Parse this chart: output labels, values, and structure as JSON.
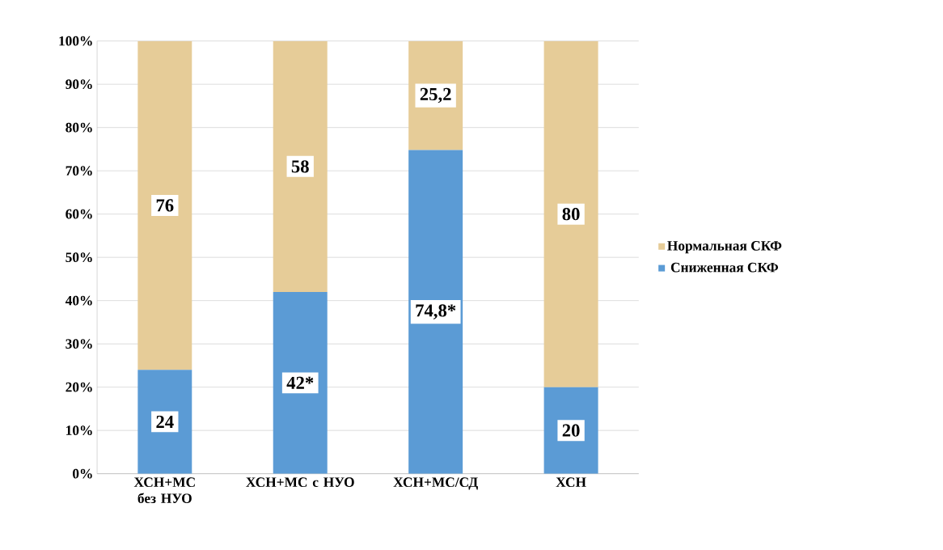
{
  "chart_data": {
    "type": "bar",
    "stacked": true,
    "categories": [
      "ХСН+МС без НУО",
      "ХСН+МС с НУО",
      "ХСН+МС/СД",
      "ХСН"
    ],
    "series": [
      {
        "name": "Сниженная СКФ",
        "color": "#5b9bd5",
        "values": [
          24,
          42,
          74.8,
          20
        ],
        "value_labels": [
          "24",
          "42*",
          "74,8*",
          "20"
        ]
      },
      {
        "name": "Нормальная СКФ",
        "color": "#e6cc98",
        "values": [
          76,
          58,
          25.2,
          80
        ],
        "value_labels": [
          "76",
          "58",
          "25,2",
          "80"
        ]
      }
    ],
    "ylim": [
      0,
      100
    ],
    "yticks": [
      {
        "value": 0,
        "label": "0%"
      },
      {
        "value": 10,
        "label": "10%"
      },
      {
        "value": 20,
        "label": "20%"
      },
      {
        "value": 30,
        "label": "30%"
      },
      {
        "value": 40,
        "label": "40%"
      },
      {
        "value": 50,
        "label": "50%"
      },
      {
        "value": 60,
        "label": "60%"
      },
      {
        "value": 70,
        "label": "70%"
      },
      {
        "value": 80,
        "label": "80%"
      },
      {
        "value": 90,
        "label": "90%"
      },
      {
        "value": 100,
        "label": "100%"
      }
    ],
    "grid": "y",
    "legend": "right"
  }
}
